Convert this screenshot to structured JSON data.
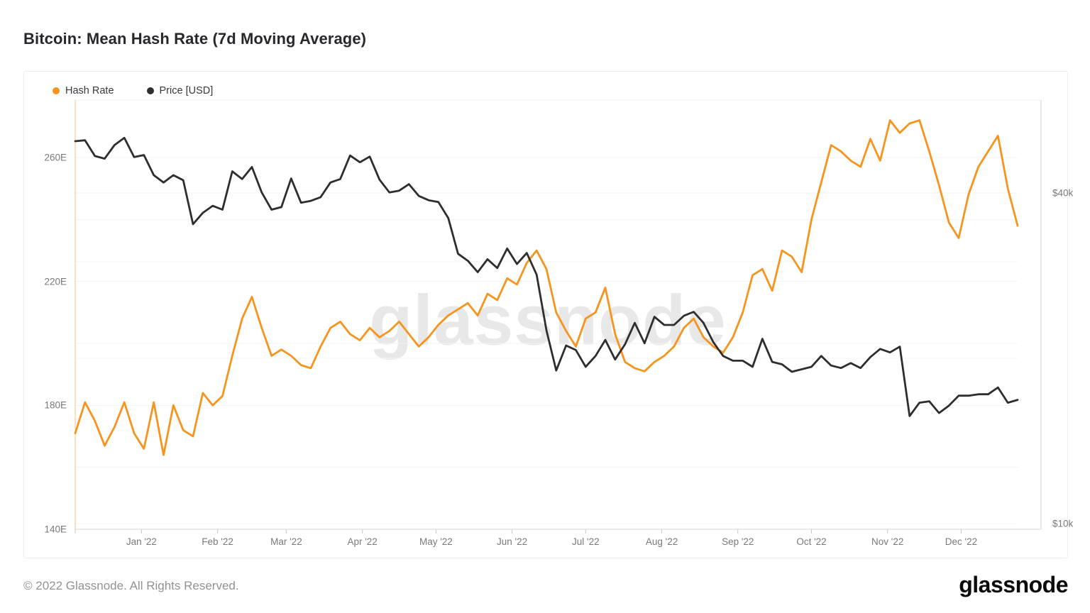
{
  "page": {
    "title": "Bitcoin: Mean Hash Rate (7d Moving Average)"
  },
  "watermark": "glassnode",
  "footer": {
    "copyright": "© 2022 Glassnode. All Rights Reserved.",
    "logo_text": "glassnode"
  },
  "colors": {
    "hash_rate": "#f7941d",
    "price": "#2e2e2e",
    "axis_text": "#76797e",
    "grid": "#f2f3f4",
    "grid_price": "#f5f6f7",
    "plot_border": "#d2d2d2",
    "plot_border_light": "#f0f0f0"
  },
  "legend": [
    {
      "label": "Hash Rate",
      "color": "#f7941d"
    },
    {
      "label": "Price [USD]",
      "color": "#2e2e2e"
    }
  ],
  "chart_data": {
    "type": "line",
    "title": "Bitcoin: Mean Hash Rate (7d Moving Average)",
    "start_date": "2021-12-05",
    "end_date": "2022-12-22",
    "step_days": 4,
    "x_total_days": 384,
    "x_ticks": [
      {
        "label": "Jan '22",
        "day": 27
      },
      {
        "label": "Feb '22",
        "day": 58
      },
      {
        "label": "Mar '22",
        "day": 86
      },
      {
        "label": "Apr '22",
        "day": 117
      },
      {
        "label": "May '22",
        "day": 147
      },
      {
        "label": "Jun '22",
        "day": 178
      },
      {
        "label": "Jul '22",
        "day": 208
      },
      {
        "label": "Aug '22",
        "day": 239
      },
      {
        "label": "Sep '22",
        "day": 270
      },
      {
        "label": "Oct '22",
        "day": 300
      },
      {
        "label": "Nov '22",
        "day": 331
      },
      {
        "label": "Dec '22",
        "day": 361
      }
    ],
    "y_axis_left": {
      "name": "Mean Hash Rate",
      "unit": "EH/s",
      "scale": "linear",
      "min": 140,
      "max": 280,
      "grid_values": [
        260,
        240,
        220,
        200,
        180,
        160
      ],
      "ticks": [
        {
          "label": "260E",
          "value": 260
        },
        {
          "label": "220E",
          "value": 220
        },
        {
          "label": "180E",
          "value": 180
        },
        {
          "label": "140E",
          "value": 140
        }
      ]
    },
    "y_axis_right": {
      "name": "Price USD",
      "unit": "USD (thousands)",
      "scale": "log",
      "grid_values": [
        40,
        30,
        20,
        10
      ],
      "ticks": [
        {
          "label": "$40k",
          "value": 40
        },
        {
          "label": "$10k",
          "value": 10
        }
      ]
    },
    "series": [
      {
        "name": "Hash Rate",
        "axis": "left",
        "color": "#f7941d",
        "unit": "EH/s",
        "values": [
          171,
          181,
          175,
          167,
          173,
          181,
          171,
          166,
          181,
          164,
          180,
          172,
          170,
          184,
          180,
          183,
          196,
          208,
          215,
          205,
          196,
          198,
          196,
          193,
          192,
          199,
          205,
          207,
          203,
          201,
          205,
          202,
          204,
          207,
          203,
          199,
          202,
          206,
          209,
          211,
          213,
          209,
          216,
          214,
          221,
          219,
          226,
          230,
          224,
          210,
          204,
          199,
          208,
          210,
          218,
          203,
          194,
          192,
          191,
          194,
          196,
          199,
          205,
          208,
          202,
          199,
          197,
          202,
          210,
          222,
          224,
          217,
          230,
          228,
          223,
          240,
          252,
          264,
          262,
          259,
          257,
          266,
          259,
          272,
          268,
          271,
          272,
          262,
          251,
          239,
          234,
          248,
          257,
          262,
          267,
          250,
          238
        ]
      },
      {
        "name": "Price [USD]",
        "axis": "right",
        "color": "#2e2e2e",
        "unit": "USD (thousands)",
        "values": [
          49.7,
          49.9,
          46.7,
          46.2,
          48.9,
          50.4,
          46.5,
          46.9,
          43.1,
          41.8,
          43.1,
          42.2,
          35.1,
          36.8,
          37.9,
          37.3,
          43.8,
          42.4,
          44.6,
          40.1,
          37.3,
          37.7,
          42.5,
          38.4,
          38.7,
          39.3,
          41.8,
          42.4,
          46.8,
          45.5,
          46.6,
          42.3,
          40.1,
          40.4,
          41.5,
          39.5,
          38.8,
          38.5,
          36.0,
          31.0,
          30.1,
          28.7,
          30.3,
          29.2,
          31.7,
          29.7,
          31.1,
          28.4,
          22.5,
          19.0,
          21.1,
          20.7,
          19.3,
          20.2,
          21.6,
          19.9,
          21.2,
          23.2,
          21.3,
          23.8,
          23.0,
          23.0,
          23.9,
          24.3,
          23.2,
          21.4,
          20.2,
          19.8,
          19.8,
          19.3,
          21.7,
          19.7,
          19.5,
          18.9,
          19.1,
          19.3,
          20.2,
          19.4,
          19.2,
          19.6,
          19.2,
          20.1,
          20.8,
          20.5,
          21.0,
          15.7,
          16.6,
          16.7,
          15.9,
          16.4,
          17.1,
          17.1,
          17.2,
          17.2,
          17.7,
          16.6,
          16.8
        ]
      }
    ],
    "legend_position": "top-left",
    "grid": "horizontal-only"
  }
}
